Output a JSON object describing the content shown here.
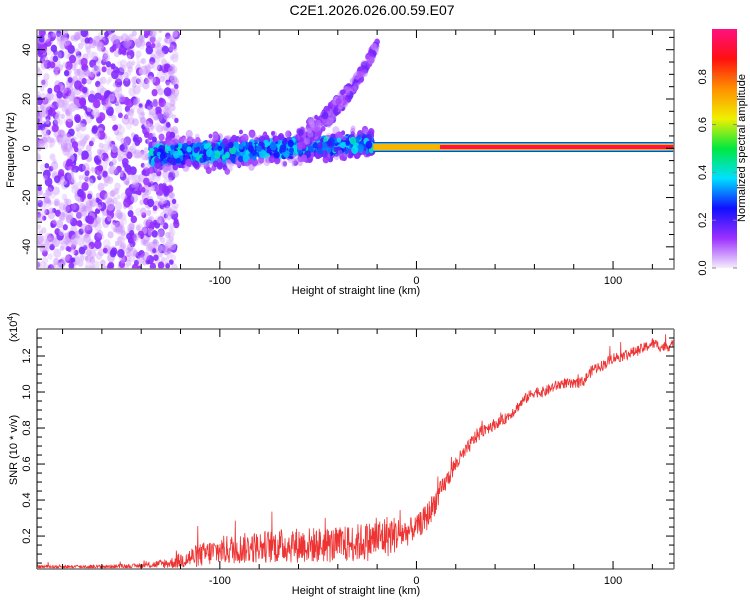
{
  "title": "C2E1.2026.026.00.59.E07",
  "chart_data": [
    {
      "type": "heatmap",
      "name": "spectrogram",
      "xlabel": "Height of straight line (km)",
      "ylabel": "Frequency (Hz)",
      "xlim": [
        -193,
        131
      ],
      "ylim": [
        -49,
        48
      ],
      "xticks": [
        -100,
        0,
        100
      ],
      "xtick_labels": [
        "-100",
        "0",
        "100"
      ],
      "yticks": [
        -40,
        -20,
        0,
        20,
        40
      ],
      "ytick_labels": [
        "-40",
        "-20",
        "0",
        "20",
        "40"
      ],
      "grid": false,
      "colorbar": {
        "label": "Normalized spectral amplitude",
        "range": [
          0.0,
          1.0
        ],
        "ticks": [
          0.0,
          0.2,
          0.4,
          0.6,
          0.8
        ],
        "tick_labels": [
          "0.0",
          "0.2",
          "0.4",
          "0.6",
          "0.8"
        ],
        "colormap": [
          "#f5eefc",
          "#9b30ff",
          "#1010ff",
          "#00e0ff",
          "#00e840",
          "#f0f000",
          "#ff9000",
          "#ff1010",
          "#ff1080"
        ]
      },
      "regions": [
        {
          "description": "diffuse noise",
          "x_range": [
            -193,
            -122
          ],
          "freq_range": [
            -49,
            48
          ],
          "amplitude": 0.08
        },
        {
          "description": "broad signal band",
          "x_range": [
            -135,
            -22
          ],
          "freq_center": [
            -3,
            2
          ],
          "freq_halfwidth": [
            8,
            6
          ],
          "amplitude": 0.3
        },
        {
          "description": "rising branch",
          "x_range": [
            -60,
            -20
          ],
          "freq_range": [
            5,
            42
          ],
          "amplitude": 0.15
        },
        {
          "description": "narrow carrier",
          "x_range": [
            -22,
            131
          ],
          "freq_center": 0.5,
          "amplitude": 0.95
        }
      ]
    },
    {
      "type": "line",
      "name": "snr",
      "xlabel": "Height of straight line (km)",
      "ylabel": "SNR (10 * v/v)",
      "y_multiplier": "(x10^4)",
      "y_multiplier_base": "(x10",
      "y_multiplier_exp": "4",
      "y_multiplier_close": ")",
      "xlim": [
        -193,
        131
      ],
      "ylim": [
        0.017,
        1.35
      ],
      "xticks": [
        -100,
        0,
        100
      ],
      "xtick_labels": [
        "-100",
        "0",
        "100"
      ],
      "yticks": [
        0.2,
        0.4,
        0.6,
        0.8,
        1.0,
        1.2
      ],
      "ytick_labels": [
        "0.2",
        "0.4",
        "0.6",
        "0.8",
        "1.0",
        "1.2"
      ],
      "grid": false,
      "color": "#ee3333",
      "series": [
        {
          "name": "SNR",
          "x": [
            -193,
            -160,
            -140,
            -125,
            -115,
            -100,
            -80,
            -60,
            -40,
            -25,
            -15,
            -5,
            0,
            5,
            10,
            15,
            20,
            25,
            30,
            35,
            40,
            45,
            50,
            55,
            60,
            65,
            70,
            75,
            80,
            85,
            90,
            95,
            100,
            105,
            110,
            115,
            120,
            125,
            131
          ],
          "y": [
            0.03,
            0.03,
            0.035,
            0.05,
            0.08,
            0.12,
            0.14,
            0.15,
            0.15,
            0.17,
            0.2,
            0.22,
            0.25,
            0.3,
            0.4,
            0.5,
            0.6,
            0.67,
            0.75,
            0.8,
            0.82,
            0.85,
            0.9,
            0.96,
            1.0,
            1.0,
            1.03,
            1.05,
            1.04,
            1.06,
            1.13,
            1.15,
            1.19,
            1.2,
            1.22,
            1.24,
            1.27,
            1.25,
            1.26
          ],
          "noise": [
            0.01,
            0.01,
            0.012,
            0.03,
            0.06,
            0.08,
            0.09,
            0.1,
            0.1,
            0.11,
            0.12,
            0.08,
            0.06,
            0.08,
            0.07,
            0.05,
            0.05,
            0.04,
            0.04,
            0.04,
            0.03,
            0.03,
            0.03,
            0.03,
            0.03,
            0.03,
            0.03,
            0.03,
            0.03,
            0.03,
            0.03,
            0.03,
            0.03,
            0.03,
            0.03,
            0.03,
            0.03,
            0.03,
            0.03
          ]
        }
      ]
    }
  ]
}
